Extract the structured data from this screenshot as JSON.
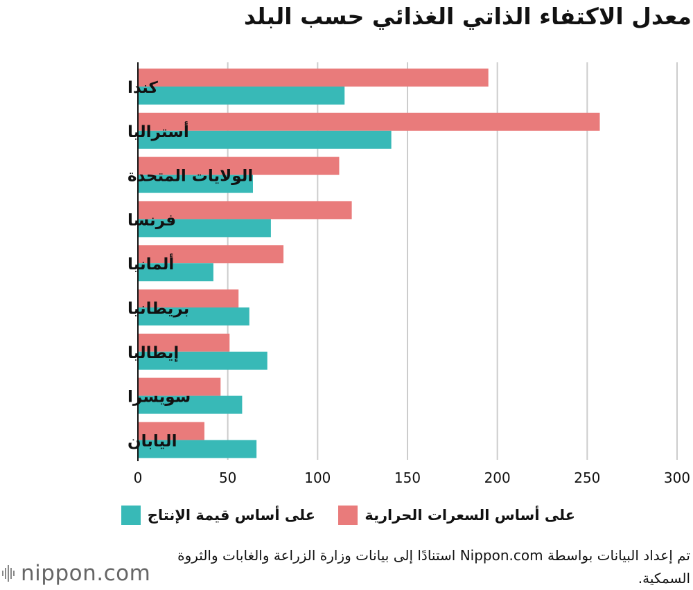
{
  "title": "معدل الاكتفاء الذاتي الغذائي حسب البلد",
  "colors": {
    "calorie": "#e97b7b",
    "production": "#38b9b7",
    "grid": "#cccccc",
    "axis": "#111111"
  },
  "legend": {
    "calorie_label": "على أساس السعرات الحرارية",
    "production_label": "على أساس قيمة الإنتاج"
  },
  "source_note": "تم إعداد البيانات بواسطة Nippon.com استنادًا إلى بيانات وزارة الزراعة والغابات والثروة السمكية.",
  "logo": {
    "text": "nippon.com"
  },
  "chart_data": {
    "type": "bar",
    "orientation": "horizontal",
    "title": "معدل الاكتفاء الذاتي الغذائي حسب البلد",
    "categories": [
      "كندا",
      "أستراليا",
      "الولايات المتحدة",
      "فرنسا",
      "ألمانيا",
      "بريطانيا",
      "إيطاليا",
      "سويسرا",
      "اليابان"
    ],
    "series": [
      {
        "name": "على أساس السعرات الحرارية",
        "color": "#e97b7b",
        "values": [
          195,
          257,
          112,
          119,
          81,
          56,
          51,
          46,
          37
        ]
      },
      {
        "name": "على أساس قيمة الإنتاج",
        "color": "#38b9b7",
        "values": [
          115,
          141,
          64,
          74,
          42,
          62,
          72,
          58,
          66
        ]
      }
    ],
    "xlim": [
      0,
      300
    ],
    "xticks": [
      0,
      50,
      100,
      150,
      200,
      250,
      300
    ],
    "grid": "vertical",
    "legend": "bottom"
  }
}
